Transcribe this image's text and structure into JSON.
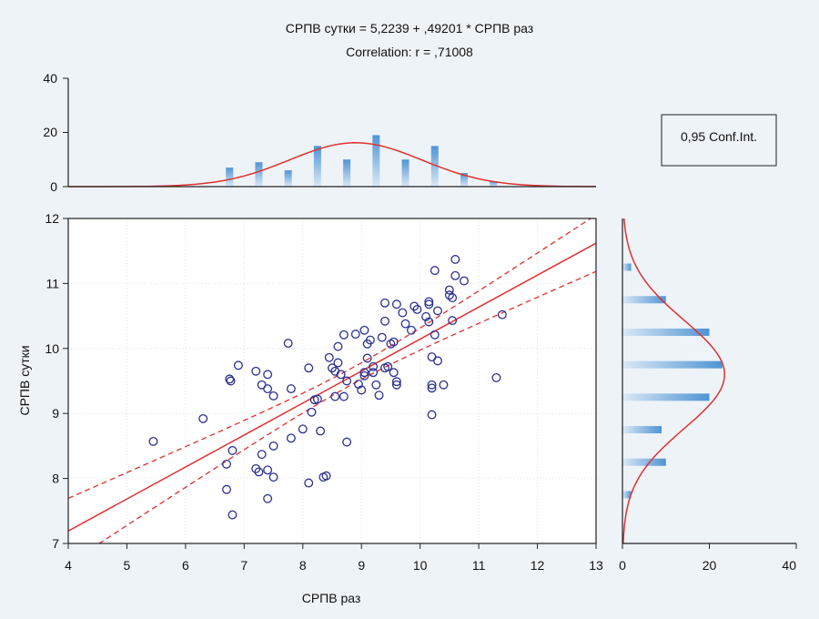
{
  "chart_data": {
    "type": "scatter",
    "title": "СРПВ сутки = 5,2239 + ,49201 * СРПВ раз",
    "subtitle": "Correlation: r = ,71008",
    "xlabel": "СРПВ раз",
    "ylabel": "СРПВ сутки",
    "xlim": [
      4,
      13
    ],
    "ylim": [
      7,
      12
    ],
    "x_ticks": [
      "4",
      "5",
      "6",
      "7",
      "8",
      "9",
      "10",
      "11",
      "12",
      "13"
    ],
    "y_ticks": [
      "7",
      "8",
      "9",
      "10",
      "11",
      "12"
    ],
    "grid": true,
    "legend": {
      "label": "0,95 Conf.Int.",
      "position": "top-right"
    },
    "colors": {
      "points": "#2b2f8f",
      "fit": "#e03030",
      "bars": "#5b9bd5",
      "background": "#eef3f8"
    },
    "regression": {
      "intercept": 5.2239,
      "slope": 0.49201,
      "r": 0.71008
    },
    "points": [
      [
        5.45,
        8.57
      ],
      [
        6.3,
        8.92
      ],
      [
        6.7,
        7.83
      ],
      [
        6.7,
        8.22
      ],
      [
        6.75,
        9.53
      ],
      [
        6.77,
        9.5
      ],
      [
        6.8,
        8.43
      ],
      [
        6.8,
        7.44
      ],
      [
        6.9,
        9.74
      ],
      [
        7.2,
        9.65
      ],
      [
        7.2,
        8.15
      ],
      [
        7.25,
        8.1
      ],
      [
        7.3,
        9.44
      ],
      [
        7.3,
        8.37
      ],
      [
        7.4,
        9.38
      ],
      [
        7.4,
        9.6
      ],
      [
        7.4,
        8.13
      ],
      [
        7.4,
        7.69
      ],
      [
        7.5,
        9.27
      ],
      [
        7.5,
        8.5
      ],
      [
        7.5,
        8.02
      ],
      [
        7.75,
        10.08
      ],
      [
        7.8,
        9.38
      ],
      [
        7.8,
        8.62
      ],
      [
        8.0,
        8.76
      ],
      [
        8.1,
        9.7
      ],
      [
        8.1,
        7.93
      ],
      [
        8.15,
        9.02
      ],
      [
        8.2,
        9.21
      ],
      [
        8.25,
        9.22
      ],
      [
        8.3,
        8.73
      ],
      [
        8.35,
        8.02
      ],
      [
        8.4,
        8.04
      ],
      [
        8.45,
        9.86
      ],
      [
        8.5,
        9.7
      ],
      [
        8.55,
        9.65
      ],
      [
        8.55,
        9.26
      ],
      [
        8.6,
        10.03
      ],
      [
        8.6,
        9.78
      ],
      [
        8.65,
        9.6
      ],
      [
        8.7,
        10.21
      ],
      [
        8.7,
        9.26
      ],
      [
        8.75,
        8.56
      ],
      [
        8.75,
        9.5
      ],
      [
        8.9,
        10.22
      ],
      [
        8.95,
        9.45
      ],
      [
        9.0,
        9.36
      ],
      [
        9.05,
        10.28
      ],
      [
        9.05,
        9.63
      ],
      [
        9.05,
        9.58
      ],
      [
        9.1,
        10.07
      ],
      [
        9.1,
        9.85
      ],
      [
        9.15,
        10.13
      ],
      [
        9.2,
        9.72
      ],
      [
        9.2,
        9.63
      ],
      [
        9.25,
        9.44
      ],
      [
        9.3,
        9.28
      ],
      [
        9.35,
        10.17
      ],
      [
        9.4,
        10.7
      ],
      [
        9.4,
        10.42
      ],
      [
        9.4,
        9.7
      ],
      [
        9.45,
        9.72
      ],
      [
        9.5,
        10.07
      ],
      [
        9.55,
        10.1
      ],
      [
        9.55,
        9.63
      ],
      [
        9.6,
        9.49
      ],
      [
        9.6,
        9.44
      ],
      [
        9.6,
        10.68
      ],
      [
        9.7,
        10.55
      ],
      [
        9.75,
        10.38
      ],
      [
        9.85,
        10.28
      ],
      [
        9.9,
        10.65
      ],
      [
        9.95,
        10.6
      ],
      [
        10.1,
        10.49
      ],
      [
        10.15,
        10.68
      ],
      [
        10.15,
        10.41
      ],
      [
        10.15,
        10.72
      ],
      [
        10.2,
        9.87
      ],
      [
        10.2,
        9.44
      ],
      [
        10.2,
        9.39
      ],
      [
        10.2,
        8.98
      ],
      [
        10.25,
        10.21
      ],
      [
        10.25,
        11.2
      ],
      [
        10.3,
        10.58
      ],
      [
        10.3,
        9.81
      ],
      [
        10.4,
        9.44
      ],
      [
        10.5,
        10.9
      ],
      [
        10.5,
        10.82
      ],
      [
        10.55,
        10.78
      ],
      [
        10.55,
        10.43
      ],
      [
        10.6,
        11.37
      ],
      [
        10.6,
        11.12
      ],
      [
        10.75,
        11.04
      ],
      [
        11.3,
        9.55
      ],
      [
        11.4,
        10.52
      ]
    ],
    "top_histogram": {
      "ylim": [
        0,
        40
      ],
      "y_ticks": [
        "0",
        "20",
        "40"
      ],
      "bins": [
        {
          "x": 6.75,
          "count": 7
        },
        {
          "x": 7.25,
          "count": 9
        },
        {
          "x": 7.75,
          "count": 6
        },
        {
          "x": 8.25,
          "count": 15
        },
        {
          "x": 8.75,
          "count": 10
        },
        {
          "x": 9.25,
          "count": 19
        },
        {
          "x": 9.75,
          "count": 10
        },
        {
          "x": 10.25,
          "count": 15
        },
        {
          "x": 10.75,
          "count": 5
        },
        {
          "x": 11.25,
          "count": 2
        }
      ],
      "normal_curve": {
        "mean": 8.9,
        "sd": 1.13,
        "peak": 16.2
      }
    },
    "right_histogram": {
      "xlim": [
        0,
        40
      ],
      "x_ticks": [
        "0",
        "20",
        "40"
      ],
      "bins": [
        {
          "y": 7.75,
          "count": 2
        },
        {
          "y": 8.25,
          "count": 10
        },
        {
          "y": 8.75,
          "count": 9
        },
        {
          "y": 9.25,
          "count": 20
        },
        {
          "y": 9.75,
          "count": 23
        },
        {
          "y": 10.25,
          "count": 20
        },
        {
          "y": 10.75,
          "count": 10
        },
        {
          "y": 11.25,
          "count": 2
        }
      ],
      "normal_curve": {
        "mean": 9.6,
        "sd": 0.83,
        "peak": 23.5
      }
    }
  }
}
